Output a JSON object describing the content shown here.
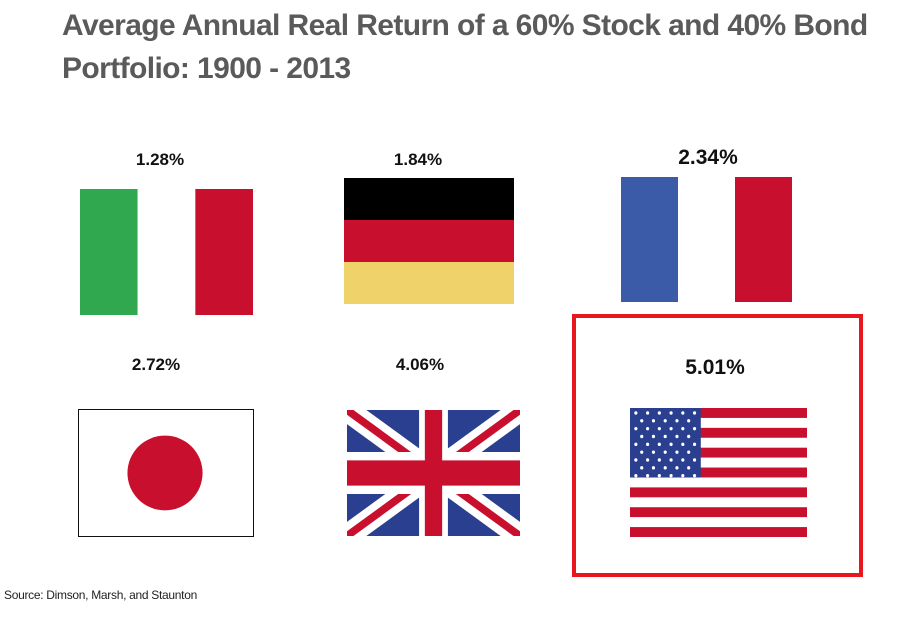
{
  "title": "Average Annual Real Return of a 60% Stock and 40% Bond Portfolio: 1900 - 2013",
  "source": "Source: Dimson, Marsh, and Staunton",
  "chart_data": {
    "type": "table",
    "title": "Average Annual Real Return of a 60% Stock and 40% Bond Portfolio: 1900 - 2013",
    "unit": "%",
    "categories": [
      "Italy",
      "Germany",
      "France",
      "Japan",
      "United Kingdom",
      "United States"
    ],
    "values": [
      1.28,
      1.84,
      2.34,
      2.72,
      4.06,
      5.01
    ],
    "labels": [
      "1.28%",
      "1.84%",
      "2.34%",
      "2.72%",
      "4.06%",
      "5.01%"
    ],
    "highlighted": "United States",
    "flag_icons": [
      "italy-flag-icon",
      "germany-flag-icon",
      "france-flag-icon",
      "japan-flag-icon",
      "uk-flag-icon",
      "usa-flag-icon"
    ]
  },
  "colors": {
    "highlight_border": "#e8171d",
    "title": "#5a5a5a",
    "italy": [
      "#2fa84f",
      "#ffffff",
      "#c8102e"
    ],
    "germany": [
      "#000000",
      "#c8102e",
      "#f0d26a"
    ],
    "france": [
      "#3b5aa8",
      "#ffffff",
      "#c8102e"
    ],
    "japan": [
      "#ffffff",
      "#c8102e"
    ],
    "uk": [
      "#2a3f8f",
      "#ffffff",
      "#c8102e"
    ],
    "usa": [
      "#c8102e",
      "#ffffff",
      "#2a3f8f"
    ]
  }
}
